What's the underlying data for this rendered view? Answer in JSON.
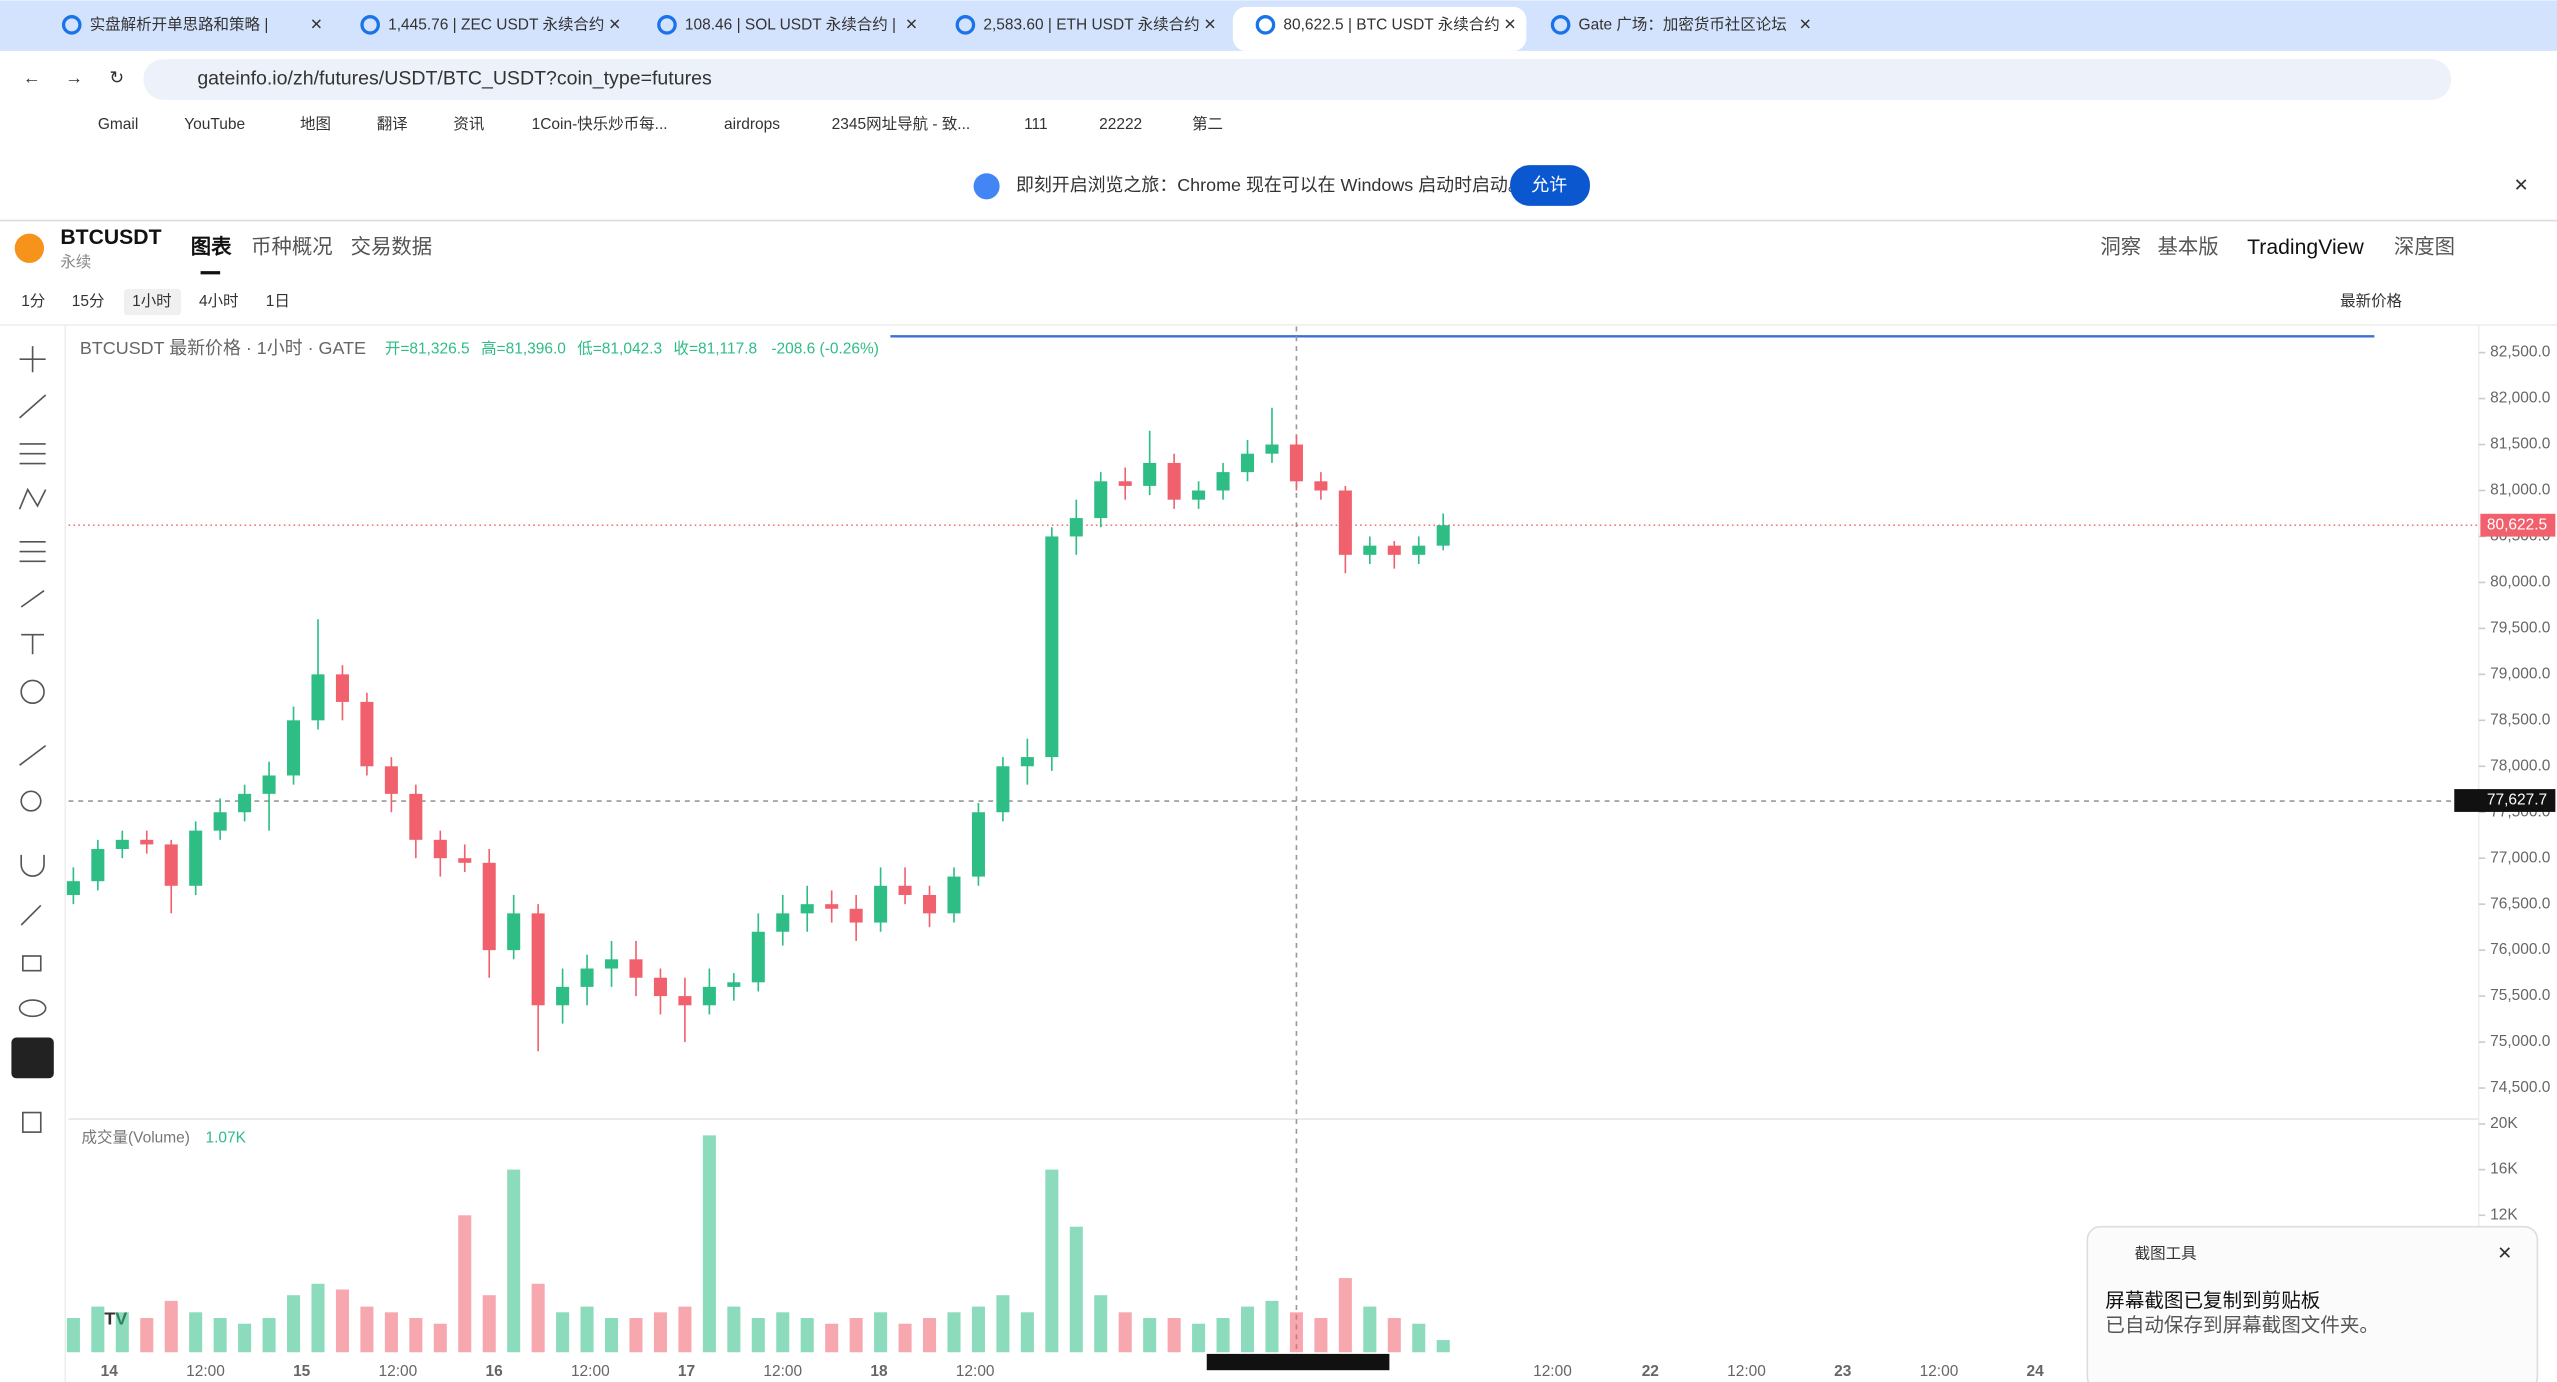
{
  "browser": {
    "tabs": [
      "实盘解析开单思路和策略 | ",
      "1,445.76 | ZEC USDT 永续合约",
      "108.46 | SOL USDT 永续合约 |",
      "2,583.60 | ETH USDT 永续合约",
      "80,622.5 | BTC USDT 永续合约",
      "Gate 广场：加密货币社区论坛"
    ],
    "url": "gateinfo.io/zh/futures/USDT/BTC_USDT?coin_type=futures",
    "bookmarks": [
      "Gmail",
      "YouTube",
      "地图",
      "翻译",
      "资讯",
      "1Coin-快乐炒币每...",
      "airdrops",
      "2345网址导航 - 致...",
      "111",
      "22222",
      "第二"
    ],
    "banner": {
      "text": "即刻开启浏览之旅：Chrome 现在可以在 Windows 启动时启动。",
      "button": "允许"
    }
  },
  "header": {
    "symbol": "BTCUSDT",
    "subtitle": "永续",
    "tabs": [
      "图表",
      "币种概况",
      "交易数据"
    ],
    "right": [
      "洞察",
      "基本版",
      "TradingView",
      "深度图"
    ]
  },
  "toolbar": {
    "intervals": [
      "1分",
      "15分",
      "1小时",
      "4小时",
      "1日"
    ],
    "price_type": "最新价格"
  },
  "chart_data": {
    "type": "candlestick",
    "legend_title": "BTCUSDT 最新价格 · 1小时 · GATE",
    "ohlc_labels": [
      "开=81,326.5",
      "高=81,396.0",
      "低=81,042.3",
      "收=81,117.8"
    ],
    "change": "-208.6 (-0.26%)",
    "up_color": "#2ebd85",
    "down_color": "#f0616d",
    "ylim": [
      74180,
      82695
    ],
    "yticks": [
      {
        "value": 82500,
        "label": "82,500.0"
      },
      {
        "value": 82000,
        "label": "82,000.0"
      },
      {
        "value": 81500,
        "label": "81,500.0"
      },
      {
        "value": 81000,
        "label": "81,000.0"
      },
      {
        "value": 80500,
        "label": "80,500.0"
      },
      {
        "value": 80000,
        "label": "80,000.0"
      },
      {
        "value": 79500,
        "label": "79,500.0"
      },
      {
        "value": 79000,
        "label": "79,000.0"
      },
      {
        "value": 78500,
        "label": "78,500.0"
      },
      {
        "value": 78000,
        "label": "78,000.0"
      },
      {
        "value": 77500,
        "label": "77,500.0"
      },
      {
        "value": 77000,
        "label": "77,000.0"
      },
      {
        "value": 76500,
        "label": "76,500.0"
      },
      {
        "value": 76000,
        "label": "76,000.0"
      },
      {
        "value": 75500,
        "label": "75,500.0"
      },
      {
        "value": 75000,
        "label": "75,000.0"
      },
      {
        "value": 74500,
        "label": "74,500.0"
      }
    ],
    "last_price": {
      "value": 80622.5,
      "label": "80,622.5"
    },
    "crosshair_price": {
      "value": 77627.7,
      "label": "77,627.7"
    },
    "candles": [
      [
        76600,
        76900,
        76500,
        76750
      ],
      [
        76750,
        77200,
        76650,
        77100
      ],
      [
        77100,
        77300,
        77000,
        77200
      ],
      [
        77200,
        77300,
        77050,
        77150
      ],
      [
        77150,
        77200,
        76400,
        76700
      ],
      [
        76700,
        77400,
        76600,
        77300
      ],
      [
        77300,
        77650,
        77200,
        77500
      ],
      [
        77500,
        77800,
        77400,
        77700
      ],
      [
        77700,
        78050,
        77300,
        77900
      ],
      [
        77900,
        78650,
        77800,
        78500
      ],
      [
        78500,
        79600,
        78400,
        79000
      ],
      [
        79000,
        79100,
        78500,
        78700
      ],
      [
        78700,
        78800,
        77900,
        78000
      ],
      [
        78000,
        78100,
        77500,
        77700
      ],
      [
        77700,
        77800,
        77000,
        77200
      ],
      [
        77200,
        77300,
        76800,
        77000
      ],
      [
        77000,
        77150,
        76850,
        76950
      ],
      [
        76950,
        77100,
        75700,
        76000
      ],
      [
        76000,
        76600,
        75900,
        76400
      ],
      [
        76400,
        76500,
        74900,
        75400
      ],
      [
        75400,
        75800,
        75200,
        75600
      ],
      [
        75600,
        75950,
        75400,
        75800
      ],
      [
        75800,
        76100,
        75600,
        75900
      ],
      [
        75900,
        76100,
        75500,
        75700
      ],
      [
        75700,
        75800,
        75300,
        75500
      ],
      [
        75500,
        75700,
        75000,
        75400
      ],
      [
        75400,
        75800,
        75300,
        75600
      ],
      [
        75600,
        75750,
        75450,
        75650
      ],
      [
        75650,
        76400,
        75550,
        76200
      ],
      [
        76200,
        76600,
        76050,
        76400
      ],
      [
        76400,
        76700,
        76200,
        76500
      ],
      [
        76500,
        76650,
        76300,
        76450
      ],
      [
        76450,
        76600,
        76100,
        76300
      ],
      [
        76300,
        76900,
        76200,
        76700
      ],
      [
        76700,
        76900,
        76500,
        76600
      ],
      [
        76600,
        76700,
        76250,
        76400
      ],
      [
        76400,
        76900,
        76300,
        76800
      ],
      [
        76800,
        77600,
        76700,
        77500
      ],
      [
        77500,
        78100,
        77400,
        78000
      ],
      [
        78000,
        78300,
        77800,
        78100
      ],
      [
        78100,
        80600,
        77950,
        80500
      ],
      [
        80500,
        80900,
        80300,
        80700
      ],
      [
        80700,
        81200,
        80600,
        81100
      ],
      [
        81100,
        81250,
        80900,
        81050
      ],
      [
        81050,
        81650,
        80950,
        81300
      ],
      [
        81300,
        81400,
        80800,
        80900
      ],
      [
        80900,
        81100,
        80800,
        81000
      ],
      [
        81000,
        81300,
        80900,
        81200
      ],
      [
        81200,
        81550,
        81100,
        81400
      ],
      [
        81400,
        81900,
        81300,
        81500
      ],
      [
        81500,
        81600,
        81000,
        81100
      ],
      [
        81100,
        81200,
        80900,
        81000
      ],
      [
        81000,
        81050,
        80100,
        80300
      ],
      [
        80300,
        80500,
        80200,
        80400
      ],
      [
        80400,
        80450,
        80150,
        80300
      ],
      [
        80300,
        80500,
        80200,
        80400
      ],
      [
        80400,
        80750,
        80350,
        80622.5
      ]
    ],
    "volume": {
      "label": "成交量(Volume)",
      "current": "1.07K",
      "ylim": [
        0,
        20000
      ],
      "yticks": [
        {
          "value": 20000,
          "label": "20K"
        },
        {
          "value": 16000,
          "label": "16K"
        },
        {
          "value": 12000,
          "label": "12K"
        }
      ],
      "values": [
        3000,
        4000,
        3500,
        3000,
        4500,
        3500,
        3000,
        2500,
        3000,
        5000,
        6000,
        5500,
        4000,
        3500,
        3000,
        2500,
        12000,
        5000,
        16000,
        6000,
        3500,
        4000,
        3000,
        3000,
        3500,
        4000,
        19000,
        4000,
        3000,
        3500,
        3000,
        2500,
        3000,
        3500,
        2500,
        3000,
        3500,
        4000,
        5000,
        3500,
        16000,
        11000,
        5000,
        3500,
        3000,
        3000,
        2500,
        3000,
        4000,
        4500,
        3500,
        3000,
        6500,
        4000,
        3000,
        2500,
        1070
      ]
    },
    "x_labels": [
      "14",
      "12:00",
      "15",
      "12:00",
      "16",
      "12:00",
      "17",
      "12:00",
      "18",
      "12:00",
      "12:00",
      "22",
      "12:00",
      "23",
      "12:00",
      "24"
    ]
  },
  "notification": {
    "app": "截图工具",
    "title": "屏幕截图已复制到剪贴板",
    "body": "已自动保存到屏幕截图文件夹。"
  }
}
